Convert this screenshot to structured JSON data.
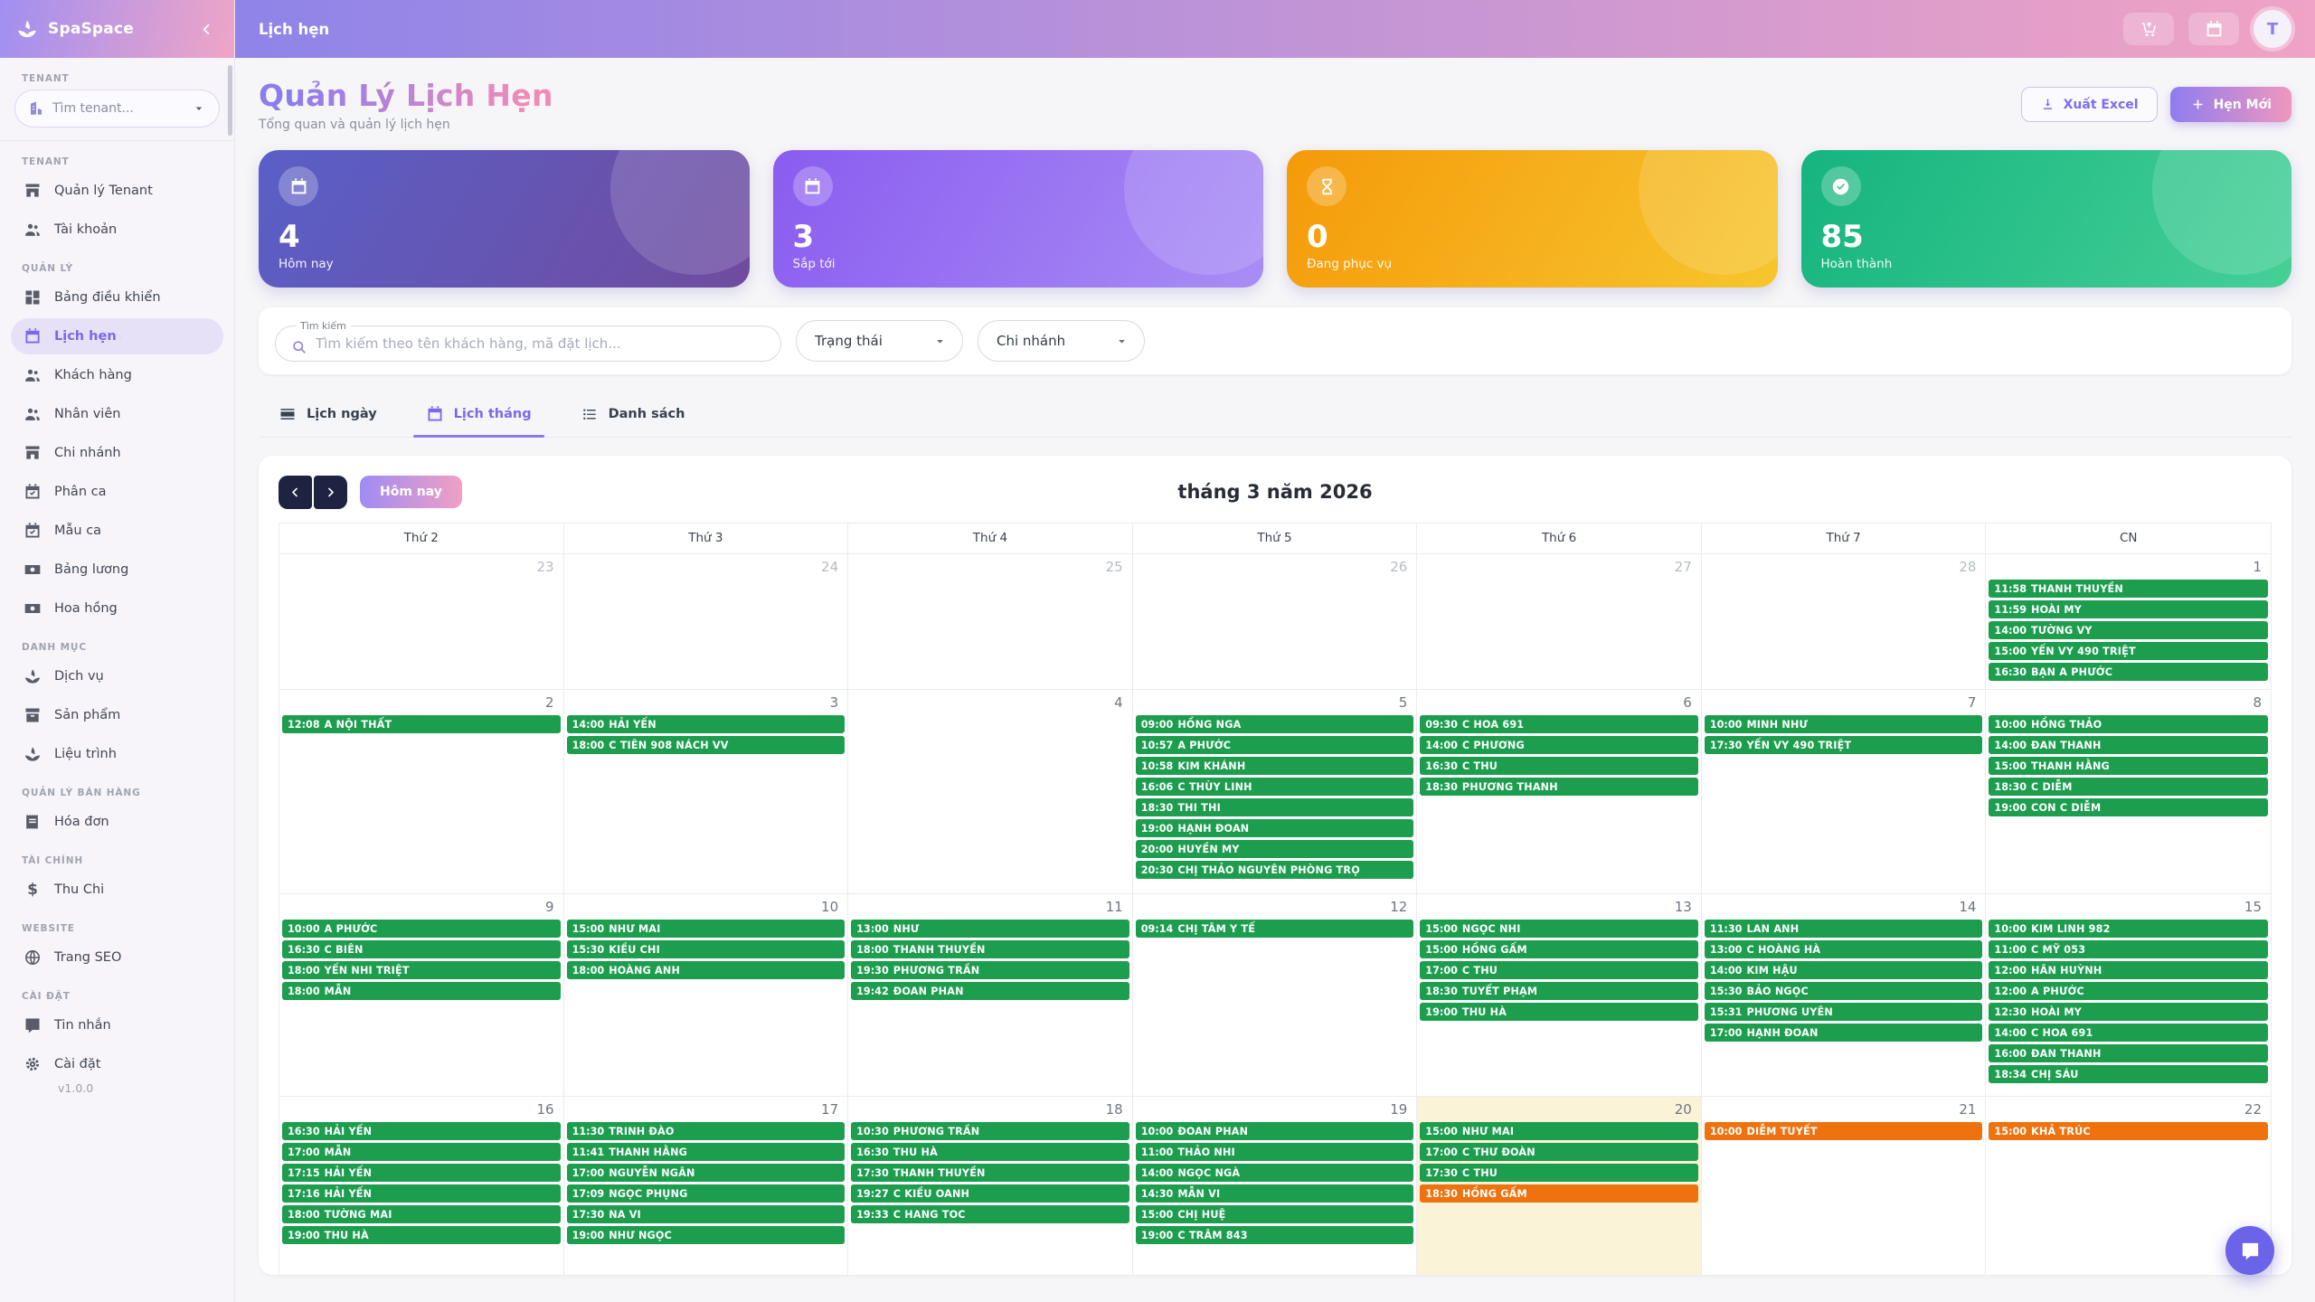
{
  "app": {
    "name": "SpaSpace",
    "version": "v1.0.0"
  },
  "topbar": {
    "title": "Lịch hẹn",
    "avatar_initial": "T"
  },
  "colors": {
    "event_green": "#1d9e4f",
    "event_orange": "#ee720d",
    "accent_purple": "#8b7cf0",
    "accent_pink": "#f08bb8"
  },
  "sidebar": {
    "search": {
      "section": "TENANT",
      "placeholder": "Tìm tenant...",
      "icon": "building"
    },
    "sections": [
      {
        "label": "TENANT",
        "items": [
          {
            "label": "Quản lý Tenant",
            "icon": "store"
          },
          {
            "label": "Tài khoản",
            "icon": "people"
          }
        ]
      },
      {
        "label": "QUẢN LÝ",
        "items": [
          {
            "label": "Bảng điều khiển",
            "icon": "dashboard"
          },
          {
            "label": "Lịch hẹn",
            "icon": "calendar",
            "active": true
          },
          {
            "label": "Khách hàng",
            "icon": "people"
          },
          {
            "label": "Nhân viên",
            "icon": "people"
          },
          {
            "label": "Chi nhánh",
            "icon": "store"
          },
          {
            "label": "Phân ca",
            "icon": "calendar-check"
          },
          {
            "label": "Mẫu ca",
            "icon": "calendar-check"
          },
          {
            "label": "Bảng lương",
            "icon": "money"
          },
          {
            "label": "Hoa hồng",
            "icon": "money"
          }
        ]
      },
      {
        "label": "DANH MỤC",
        "items": [
          {
            "label": "Dịch vụ",
            "icon": "spa"
          },
          {
            "label": "Sản phẩm",
            "icon": "box"
          },
          {
            "label": "Liệu trình",
            "icon": "spa"
          }
        ]
      },
      {
        "label": "QUẢN LÝ BÁN HÀNG",
        "items": [
          {
            "label": "Hóa đơn",
            "icon": "receipt"
          }
        ]
      },
      {
        "label": "TÀI CHÍNH",
        "items": [
          {
            "label": "Thu Chi",
            "icon": "dollar"
          }
        ]
      },
      {
        "label": "WEBSITE",
        "items": [
          {
            "label": "Trang SEO",
            "icon": "globe"
          }
        ]
      },
      {
        "label": "CÀI ĐẶT",
        "items": [
          {
            "label": "Tin nhắn",
            "icon": "chat"
          },
          {
            "label": "Cài đặt",
            "icon": "gear"
          }
        ]
      }
    ]
  },
  "page": {
    "title": "Quản Lý Lịch Hẹn",
    "subtitle": "Tổng quan và quản lý lịch hẹn",
    "export_label": "Xuất Excel",
    "new_label": "Hẹn Mới"
  },
  "stats": [
    {
      "value": "4",
      "label": "Hôm nay",
      "icon": "calendar",
      "from": "#5a5fc7",
      "to": "#6f4c9f"
    },
    {
      "value": "3",
      "label": "Sắp tới",
      "icon": "calendar",
      "from": "#8a5cf0",
      "to": "#a98df5"
    },
    {
      "value": "0",
      "label": "Đang phục vụ",
      "icon": "hourglass",
      "from": "#f59a0a",
      "to": "#f6c62d"
    },
    {
      "value": "85",
      "label": "Hoàn thành",
      "icon": "check-circle",
      "from": "#16b47f",
      "to": "#45d096"
    }
  ],
  "filters": {
    "search_label": "Tìm kiếm",
    "search_placeholder": "Tìm kiếm theo tên khách hàng, mã đặt lịch...",
    "search_value": "",
    "status": "Trạng thái",
    "branch": "Chi nhánh"
  },
  "tabs": [
    {
      "label": "Lịch ngày",
      "icon": "view-day"
    },
    {
      "label": "Lịch tháng",
      "icon": "calendar",
      "active": true
    },
    {
      "label": "Danh sách",
      "icon": "list"
    }
  ],
  "calendar": {
    "today_label": "Hôm nay",
    "title": "tháng 3 năm 2026",
    "weekdays": [
      "Thứ 2",
      "Thứ 3",
      "Thứ 4",
      "Thứ 5",
      "Thứ 6",
      "Thứ 7",
      "CN"
    ],
    "weeks": [
      [
        {
          "day": 23,
          "other": true
        },
        {
          "day": 24,
          "other": true
        },
        {
          "day": 25,
          "other": true
        },
        {
          "day": 26,
          "other": true
        },
        {
          "day": 27,
          "other": true
        },
        {
          "day": 28,
          "other": true
        },
        {
          "day": 1,
          "events": [
            {
              "t": "11:58",
              "n": "THANH THUYỀN"
            },
            {
              "t": "11:59",
              "n": "HOÀI MY"
            },
            {
              "t": "14:00",
              "n": "TƯỜNG VY"
            },
            {
              "t": "15:00",
              "n": "YẾN VY 490 TRIỆT"
            },
            {
              "t": "16:30",
              "n": "BẠN A PHƯỚC"
            }
          ]
        }
      ],
      [
        {
          "day": 2,
          "events": [
            {
              "t": "12:08",
              "n": "A NỘI THẤT"
            }
          ]
        },
        {
          "day": 3,
          "events": [
            {
              "t": "14:00",
              "n": "HẢI YẾN"
            },
            {
              "t": "18:00",
              "n": "C TIÊN 908 NÁCH VV"
            }
          ]
        },
        {
          "day": 4,
          "events": []
        },
        {
          "day": 5,
          "events": [
            {
              "t": "09:00",
              "n": "HỒNG NGA"
            },
            {
              "t": "10:57",
              "n": "A PHƯỚC"
            },
            {
              "t": "10:58",
              "n": "KIM KHÁNH"
            },
            {
              "t": "16:06",
              "n": "C THÙY LINH"
            },
            {
              "t": "18:30",
              "n": "THI THI"
            },
            {
              "t": "19:00",
              "n": "HẠNH ĐOAN"
            },
            {
              "t": "20:00",
              "n": "HUYỀN MY"
            },
            {
              "t": "20:30",
              "n": "CHỊ THẢO NGUYÊN PHÒNG TRỌ"
            }
          ]
        },
        {
          "day": 6,
          "events": [
            {
              "t": "09:30",
              "n": "C HOA 691"
            },
            {
              "t": "14:00",
              "n": "C PHƯƠNG"
            },
            {
              "t": "16:30",
              "n": "C THU"
            },
            {
              "t": "18:30",
              "n": "PHƯƠNG THANH"
            }
          ]
        },
        {
          "day": 7,
          "events": [
            {
              "t": "10:00",
              "n": "MINH NHƯ"
            },
            {
              "t": "17:30",
              "n": "YẾN VY 490 TRIỆT"
            }
          ]
        },
        {
          "day": 8,
          "events": [
            {
              "t": "10:00",
              "n": "HỒNG THẢO"
            },
            {
              "t": "14:00",
              "n": "ĐAN THANH"
            },
            {
              "t": "15:00",
              "n": "THANH HẰNG"
            },
            {
              "t": "18:30",
              "n": "C DIỄM"
            },
            {
              "t": "19:00",
              "n": "CON C DIỄM"
            }
          ]
        }
      ],
      [
        {
          "day": 9,
          "events": [
            {
              "t": "10:00",
              "n": "A PHƯỚC"
            },
            {
              "t": "16:30",
              "n": "C BIÊN"
            },
            {
              "t": "18:00",
              "n": "YẾN NHI TRIỆT"
            },
            {
              "t": "18:00",
              "n": "MẪN"
            }
          ]
        },
        {
          "day": 10,
          "events": [
            {
              "t": "15:00",
              "n": "NHƯ MAI"
            },
            {
              "t": "15:30",
              "n": "KIỀU CHI"
            },
            {
              "t": "18:00",
              "n": "HOÀNG ANH"
            }
          ]
        },
        {
          "day": 11,
          "events": [
            {
              "t": "13:00",
              "n": "NHƯ"
            },
            {
              "t": "18:00",
              "n": "THANH THUYỀN"
            },
            {
              "t": "19:30",
              "n": "PHƯƠNG TRẦN"
            },
            {
              "t": "19:42",
              "n": "ĐOAN PHAN"
            }
          ]
        },
        {
          "day": 12,
          "events": [
            {
              "t": "09:14",
              "n": "CHỊ TÂM Y TẾ"
            }
          ]
        },
        {
          "day": 13,
          "events": [
            {
              "t": "15:00",
              "n": "NGỌC NHI"
            },
            {
              "t": "15:00",
              "n": "HỒNG GẤM"
            },
            {
              "t": "17:00",
              "n": "C THU"
            },
            {
              "t": "18:30",
              "n": "TUYẾT PHẠM"
            },
            {
              "t": "19:00",
              "n": "THU HÀ"
            }
          ]
        },
        {
          "day": 14,
          "events": [
            {
              "t": "11:30",
              "n": "LAN ANH"
            },
            {
              "t": "13:00",
              "n": "C HOÀNG HÀ"
            },
            {
              "t": "14:00",
              "n": "KIM HẬU"
            },
            {
              "t": "15:30",
              "n": "BẢO NGỌC"
            },
            {
              "t": "15:31",
              "n": "PHƯƠNG UYÊN"
            },
            {
              "t": "17:00",
              "n": "HẠNH ĐOAN"
            }
          ]
        },
        {
          "day": 15,
          "events": [
            {
              "t": "10:00",
              "n": "KIM LINH 982"
            },
            {
              "t": "11:00",
              "n": "C MỸ 053"
            },
            {
              "t": "12:00",
              "n": "HÂN HUỲNH"
            },
            {
              "t": "12:00",
              "n": "A PHƯỚC"
            },
            {
              "t": "12:30",
              "n": "HOÀI MY"
            },
            {
              "t": "14:00",
              "n": "C HOA 691"
            },
            {
              "t": "16:00",
              "n": "ĐAN THANH"
            },
            {
              "t": "18:34",
              "n": "CHỊ SÁU"
            }
          ]
        }
      ],
      [
        {
          "day": 16,
          "events": [
            {
              "t": "16:30",
              "n": "HẢI YẾN"
            },
            {
              "t": "17:00",
              "n": "MẪN"
            },
            {
              "t": "17:15",
              "n": "HẢI YẾN"
            },
            {
              "t": "17:16",
              "n": "HẢI YẾN"
            },
            {
              "t": "18:00",
              "n": "TƯỜNG MAI"
            },
            {
              "t": "19:00",
              "n": "THU HÀ"
            }
          ]
        },
        {
          "day": 17,
          "events": [
            {
              "t": "11:30",
              "n": "TRINH ĐÀO"
            },
            {
              "t": "11:41",
              "n": "THANH HẰNG"
            },
            {
              "t": "17:00",
              "n": "NGUYỄN NGÂN"
            },
            {
              "t": "17:09",
              "n": "NGỌC PHỤNG"
            },
            {
              "t": "17:30",
              "n": "NA VI"
            },
            {
              "t": "19:00",
              "n": "NHƯ NGỌC"
            }
          ]
        },
        {
          "day": 18,
          "events": [
            {
              "t": "10:30",
              "n": "PHƯƠNG TRẦN"
            },
            {
              "t": "16:30",
              "n": "THU HÀ"
            },
            {
              "t": "17:30",
              "n": "THANH THUYỀN"
            },
            {
              "t": "19:27",
              "n": "C KIỀU OANH"
            },
            {
              "t": "19:33",
              "n": "C HANG TOC"
            }
          ]
        },
        {
          "day": 19,
          "events": [
            {
              "t": "10:00",
              "n": "ĐOAN PHAN"
            },
            {
              "t": "11:00",
              "n": "THẢO NHI"
            },
            {
              "t": "14:00",
              "n": "NGỌC NGÀ"
            },
            {
              "t": "14:30",
              "n": "MẪN VI"
            },
            {
              "t": "15:00",
              "n": "CHỊ HUỆ"
            },
            {
              "t": "19:00",
              "n": "C TRÂM 843"
            }
          ]
        },
        {
          "day": 20,
          "today": true,
          "events": [
            {
              "t": "15:00",
              "n": "NHƯ MAI"
            },
            {
              "t": "17:00",
              "n": "C THƯ ĐOÀN"
            },
            {
              "t": "17:30",
              "n": "C THU"
            },
            {
              "t": "18:30",
              "n": "HỒNG GẤM",
              "c": "o"
            }
          ]
        },
        {
          "day": 21,
          "events": [
            {
              "t": "10:00",
              "n": "DIỄM TUYẾT",
              "c": "o"
            }
          ]
        },
        {
          "day": 22,
          "events": [
            {
              "t": "15:00",
              "n": "KHẢ TRÚC",
              "c": "o"
            }
          ]
        }
      ]
    ]
  }
}
